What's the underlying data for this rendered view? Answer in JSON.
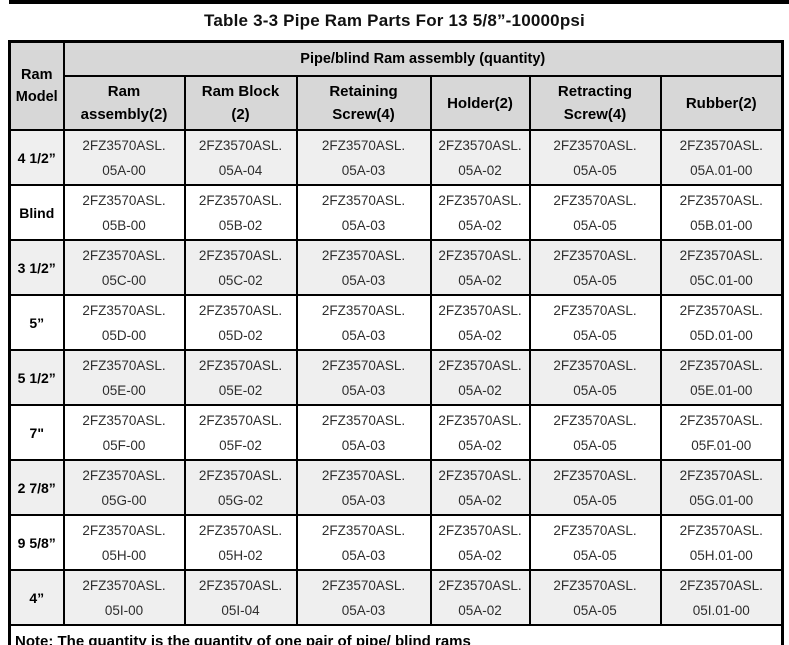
{
  "title": "Table 3-3 Pipe Ram Parts For 13 5/8”-10000psi",
  "table": {
    "corner_header": {
      "line1": "Ram",
      "line2": "Model"
    },
    "group_header": "Pipe/blind Ram assembly (quantity)",
    "columns": [
      {
        "line1": "Ram",
        "line2": "assembly(2)"
      },
      {
        "line1": "Ram Block",
        "line2": "(2)"
      },
      {
        "line1": "Retaining",
        "line2": "Screw(4)"
      },
      {
        "line1": "Holder(2)",
        "line2": ""
      },
      {
        "line1": "Retracting",
        "line2": "Screw(4)"
      },
      {
        "line1": "Rubber(2)",
        "line2": ""
      }
    ],
    "prefix": "2FZ3570ASL.",
    "rows": [
      {
        "model": "4 1/2”",
        "parts": [
          "05A-00",
          "05A-04",
          "05A-03",
          "05A-02",
          "05A-05",
          "05A.01-00"
        ]
      },
      {
        "model": "Blind",
        "parts": [
          "05B-00",
          "05B-02",
          "05A-03",
          "05A-02",
          "05A-05",
          "05B.01-00"
        ]
      },
      {
        "model": "3 1/2”",
        "parts": [
          "05C-00",
          "05C-02",
          "05A-03",
          "05A-02",
          "05A-05",
          "05C.01-00"
        ]
      },
      {
        "model": "5”",
        "parts": [
          "05D-00",
          "05D-02",
          "05A-03",
          "05A-02",
          "05A-05",
          "05D.01-00"
        ]
      },
      {
        "model": "5 1/2”",
        "parts": [
          "05E-00",
          "05E-02",
          "05A-03",
          "05A-02",
          "05A-05",
          "05E.01-00"
        ]
      },
      {
        "model": "7\"",
        "parts": [
          "05F-00",
          "05F-02",
          "05A-03",
          "05A-02",
          "05A-05",
          "05F.01-00"
        ]
      },
      {
        "model": "2 7/8”",
        "parts": [
          "05G-00",
          "05G-02",
          "05A-03",
          "05A-02",
          "05A-05",
          "05G.01-00"
        ]
      },
      {
        "model": "9 5/8”",
        "parts": [
          "05H-00",
          "05H-02",
          "05A-03",
          "05A-02",
          "05A-05",
          "05H.01-00"
        ]
      },
      {
        "model": "4”",
        "parts": [
          "05I-00",
          "05I-04",
          "05A-03",
          "05A-02",
          "05A-05",
          "05I.01-00"
        ]
      }
    ],
    "note": "Note: The quantity is the quantity of one pair of pipe/ blind rams"
  },
  "colors": {
    "header_background": "#d7d7d7",
    "shaded_row_background": "#efefef",
    "border": "#000000",
    "data_text": "#2e2e2e"
  }
}
